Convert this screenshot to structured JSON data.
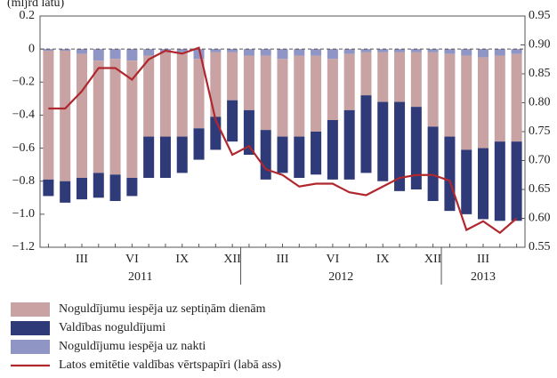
{
  "chart_data": {
    "type": "bar",
    "subtitle": "(mljrd latu)",
    "categories": [
      null,
      null,
      "III",
      null,
      null,
      "VI",
      null,
      null,
      "IX",
      null,
      null,
      "XII",
      null,
      null,
      "III",
      null,
      null,
      "VI",
      null,
      null,
      "IX",
      null,
      null,
      "XII",
      null,
      null,
      "III",
      null,
      null
    ],
    "years": [
      "2011",
      "2012",
      "2013"
    ],
    "series": [
      {
        "name": "Noguldījumu iespēja uz septiņām dienām",
        "color": "#c9a3a3",
        "values": [
          -0.78,
          -0.79,
          -0.75,
          -0.68,
          -0.7,
          -0.71,
          -0.49,
          -0.51,
          -0.51,
          -0.42,
          -0.39,
          -0.29,
          -0.33,
          -0.45,
          -0.47,
          -0.49,
          -0.46,
          -0.37,
          -0.34,
          -0.26,
          -0.3,
          -0.3,
          -0.33,
          -0.45,
          -0.5,
          -0.57,
          -0.55,
          -0.52,
          -0.53
        ]
      },
      {
        "name": "Valdības noguldījumi",
        "color": "#2f3a78",
        "values": [
          -0.1,
          -0.13,
          -0.13,
          -0.15,
          -0.16,
          -0.11,
          -0.25,
          -0.25,
          -0.22,
          -0.19,
          -0.2,
          -0.25,
          -0.27,
          -0.3,
          -0.22,
          -0.25,
          -0.26,
          -0.36,
          -0.42,
          -0.47,
          -0.48,
          -0.54,
          -0.5,
          -0.45,
          -0.45,
          -0.39,
          -0.43,
          -0.48,
          -0.48
        ]
      },
      {
        "name": "Noguldījumu iespēja uz nakti",
        "color": "#8f95c4",
        "values": [
          -0.01,
          -0.01,
          -0.03,
          -0.07,
          -0.06,
          -0.07,
          -0.04,
          -0.02,
          -0.02,
          -0.06,
          -0.02,
          -0.02,
          -0.04,
          -0.04,
          -0.06,
          -0.04,
          -0.04,
          -0.06,
          -0.03,
          -0.02,
          -0.02,
          -0.02,
          -0.02,
          -0.02,
          -0.03,
          -0.04,
          -0.05,
          -0.04,
          -0.03
        ]
      },
      {
        "name": "Latos emitētie valdības vērtspapīri (labā ass)",
        "color": "#b0282e",
        "type": "line",
        "axis": "y2",
        "values": [
          0.79,
          0.79,
          0.82,
          0.86,
          0.86,
          0.84,
          0.875,
          0.89,
          0.885,
          0.895,
          0.77,
          0.71,
          0.725,
          0.685,
          0.675,
          0.655,
          0.66,
          0.66,
          0.645,
          0.64,
          0.655,
          0.67,
          0.675,
          0.675,
          0.665,
          0.58,
          0.595,
          0.575,
          0.6
        ]
      }
    ],
    "ylim": [
      -1.2,
      0.2
    ],
    "yticks": [
      {
        "value": -1.2,
        "label": "−1.2"
      },
      {
        "value": -1.0,
        "label": "−1.0"
      },
      {
        "value": -0.8,
        "label": "−0.8"
      },
      {
        "value": -0.6,
        "label": "−0.6"
      },
      {
        "value": -0.4,
        "label": "−0.4"
      },
      {
        "value": -0.2,
        "label": "−0.2"
      },
      0,
      0.2
    ],
    "y2lim": [
      0.55,
      0.95
    ],
    "y2ticks": [
      0.55,
      {
        "value": 0.6,
        "label": "0.60"
      },
      0.65,
      {
        "value": 0.7,
        "label": "0.70"
      },
      0.75,
      {
        "value": 0.8,
        "label": "0.80"
      },
      0.85,
      {
        "value": 0.9,
        "label": "0.90"
      },
      0.95
    ]
  }
}
